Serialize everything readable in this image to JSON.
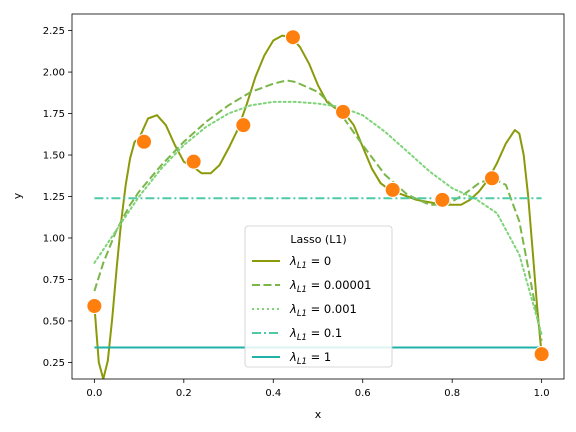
{
  "chart_data": {
    "type": "line",
    "title": "",
    "xlabel": "x",
    "ylabel": "y",
    "xlim": [
      -0.05,
      1.05
    ],
    "ylim": [
      0.15,
      2.35
    ],
    "xticks": [
      "0.0",
      "0.2",
      "0.4",
      "0.6",
      "0.8",
      "1.0"
    ],
    "xtick_values": [
      0.0,
      0.2,
      0.4,
      0.6,
      0.8,
      1.0
    ],
    "yticks": [
      "0.25",
      "0.50",
      "0.75",
      "1.00",
      "1.25",
      "1.50",
      "1.75",
      "2.00",
      "2.25"
    ],
    "ytick_values": [
      0.25,
      0.5,
      0.75,
      1.0,
      1.25,
      1.5,
      1.75,
      2.0,
      2.25
    ],
    "grid": false,
    "legend": {
      "title": "Lasso (L1)",
      "placement": "lower-center"
    },
    "points": {
      "color": "#ff7f0e",
      "x": [
        0.0,
        0.111,
        0.222,
        0.333,
        0.444,
        0.556,
        0.667,
        0.778,
        0.889,
        1.0
      ],
      "y": [
        0.59,
        1.58,
        1.46,
        1.68,
        2.21,
        1.76,
        1.29,
        1.23,
        1.36,
        0.3
      ]
    },
    "series": [
      {
        "name": "λ_L1 = 0",
        "legend_symbol": "λ",
        "legend_sub": "L1",
        "legend_value": " = 0",
        "color": "#8a9a0a",
        "style": "solid",
        "x": [
          0.0,
          0.01,
          0.02,
          0.03,
          0.04,
          0.05,
          0.06,
          0.07,
          0.08,
          0.09,
          0.1,
          0.12,
          0.14,
          0.16,
          0.18,
          0.2,
          0.22,
          0.24,
          0.26,
          0.28,
          0.3,
          0.32,
          0.34,
          0.36,
          0.38,
          0.4,
          0.42,
          0.44,
          0.46,
          0.48,
          0.5,
          0.52,
          0.54,
          0.56,
          0.58,
          0.6,
          0.62,
          0.64,
          0.66,
          0.68,
          0.7,
          0.72,
          0.74,
          0.76,
          0.78,
          0.8,
          0.82,
          0.84,
          0.86,
          0.88,
          0.9,
          0.92,
          0.94,
          0.95,
          0.96,
          0.97,
          0.98,
          0.99,
          1.0
        ],
        "y": [
          0.59,
          0.25,
          0.15,
          0.26,
          0.52,
          0.82,
          1.1,
          1.32,
          1.48,
          1.58,
          1.6,
          1.72,
          1.74,
          1.68,
          1.56,
          1.46,
          1.43,
          1.39,
          1.39,
          1.44,
          1.54,
          1.65,
          1.8,
          1.97,
          2.1,
          2.19,
          2.22,
          2.21,
          2.15,
          2.05,
          1.92,
          1.82,
          1.78,
          1.75,
          1.68,
          1.55,
          1.42,
          1.33,
          1.29,
          1.27,
          1.25,
          1.23,
          1.22,
          1.21,
          1.2,
          1.2,
          1.2,
          1.23,
          1.28,
          1.35,
          1.45,
          1.57,
          1.65,
          1.63,
          1.5,
          1.25,
          0.92,
          0.58,
          0.3
        ]
      },
      {
        "name": "λ_L1 = 0.00001",
        "legend_symbol": "λ",
        "legend_sub": "L1",
        "legend_value": " = 0.00001",
        "color": "#7ab648",
        "style": "dashed",
        "x": [
          0.0,
          0.02,
          0.05,
          0.08,
          0.1,
          0.15,
          0.2,
          0.25,
          0.3,
          0.35,
          0.4,
          0.43,
          0.45,
          0.5,
          0.55,
          0.6,
          0.65,
          0.7,
          0.75,
          0.78,
          0.8,
          0.83,
          0.86,
          0.89,
          0.92,
          0.95,
          0.97,
          1.0
        ],
        "y": [
          0.68,
          0.85,
          1.05,
          1.2,
          1.28,
          1.44,
          1.58,
          1.7,
          1.8,
          1.88,
          1.93,
          1.95,
          1.94,
          1.88,
          1.75,
          1.56,
          1.38,
          1.26,
          1.2,
          1.2,
          1.22,
          1.27,
          1.33,
          1.36,
          1.32,
          1.1,
          0.82,
          0.38
        ]
      },
      {
        "name": "λ_L1 = 0.001",
        "legend_symbol": "λ",
        "legend_sub": "L1",
        "legend_value": " = 0.001",
        "color": "#7fd47a",
        "style": "dotted",
        "x": [
          0.0,
          0.05,
          0.1,
          0.15,
          0.2,
          0.25,
          0.3,
          0.35,
          0.4,
          0.45,
          0.5,
          0.55,
          0.6,
          0.65,
          0.7,
          0.75,
          0.8,
          0.85,
          0.9,
          0.95,
          1.0
        ],
        "y": [
          0.85,
          1.05,
          1.25,
          1.42,
          1.56,
          1.67,
          1.75,
          1.8,
          1.82,
          1.82,
          1.81,
          1.79,
          1.74,
          1.64,
          1.52,
          1.4,
          1.3,
          1.24,
          1.15,
          0.9,
          0.42
        ]
      },
      {
        "name": "λ_L1 = 0.1",
        "legend_symbol": "λ",
        "legend_sub": "L1",
        "legend_value": " = 0.1",
        "color": "#4ecba6",
        "style": "dashdot",
        "x": [
          0.0,
          1.0
        ],
        "y": [
          1.24,
          1.24
        ]
      },
      {
        "name": "λ_L1 = 1",
        "legend_symbol": "λ",
        "legend_sub": "L1",
        "legend_value": " = 1",
        "color": "#20b2a8",
        "style": "solid",
        "x": [
          0.0,
          1.0
        ],
        "y": [
          0.34,
          0.34
        ]
      }
    ]
  }
}
